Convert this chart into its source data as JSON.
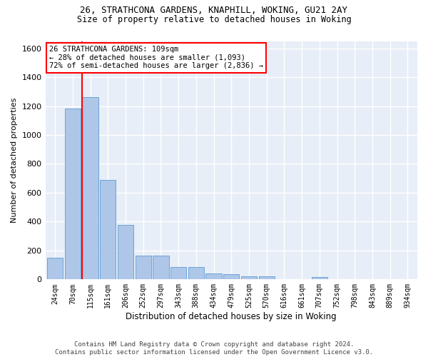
{
  "title1": "26, STRATHCONA GARDENS, KNAPHILL, WOKING, GU21 2AY",
  "title2": "Size of property relative to detached houses in Woking",
  "xlabel": "Distribution of detached houses by size in Woking",
  "ylabel": "Number of detached properties",
  "categories": [
    "24sqm",
    "70sqm",
    "115sqm",
    "161sqm",
    "206sqm",
    "252sqm",
    "297sqm",
    "343sqm",
    "388sqm",
    "434sqm",
    "479sqm",
    "525sqm",
    "570sqm",
    "616sqm",
    "661sqm",
    "707sqm",
    "752sqm",
    "798sqm",
    "843sqm",
    "889sqm",
    "934sqm"
  ],
  "values": [
    150,
    1185,
    1260,
    690,
    375,
    165,
    165,
    85,
    85,
    40,
    35,
    22,
    22,
    0,
    0,
    18,
    0,
    0,
    0,
    0,
    0
  ],
  "bar_color": "#aec6e8",
  "bar_edge_color": "#5b9bd5",
  "vline_color": "red",
  "vline_xindex": 2,
  "annotation_line1": "26 STRATHCONA GARDENS: 109sqm",
  "annotation_line2": "← 28% of detached houses are smaller (1,093)",
  "annotation_line3": "72% of semi-detached houses are larger (2,836) →",
  "ylim": [
    0,
    1650
  ],
  "yticks": [
    0,
    200,
    400,
    600,
    800,
    1000,
    1200,
    1400,
    1600
  ],
  "background_color": "#e8eef7",
  "grid_color": "white",
  "footer1": "Contains HM Land Registry data © Crown copyright and database right 2024.",
  "footer2": "Contains public sector information licensed under the Open Government Licence v3.0."
}
